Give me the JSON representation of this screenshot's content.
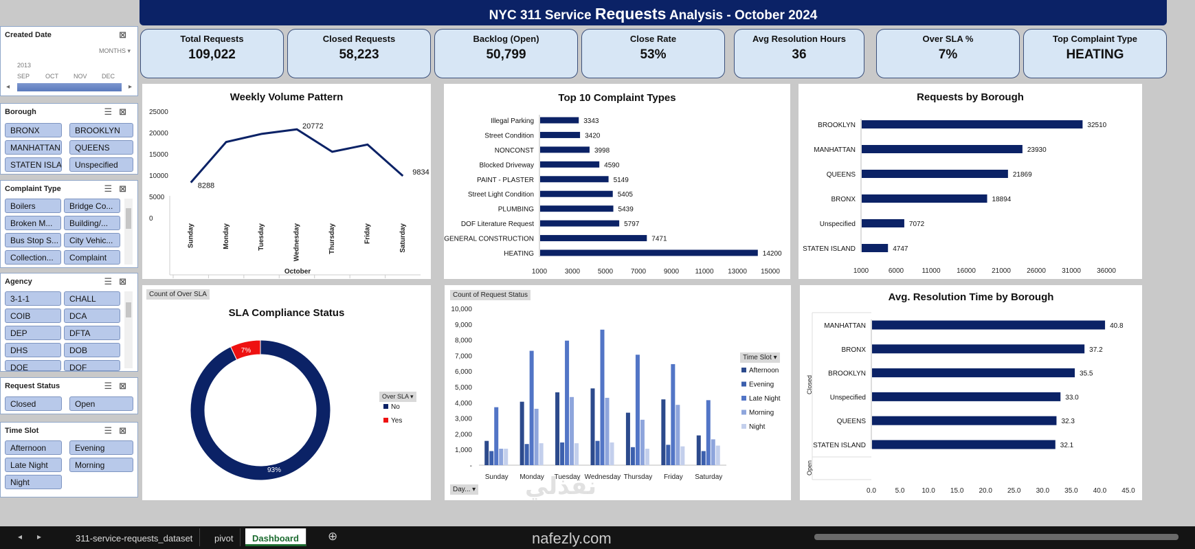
{
  "title": {
    "pre": "NYC 311 Service ",
    "big": "Requests",
    "post": " Analysis - October 2024"
  },
  "kpis": [
    {
      "label": "Total Requests",
      "value": "109,022"
    },
    {
      "label": "Closed Requests",
      "value": "58,223"
    },
    {
      "label": "Backlog (Open)",
      "value": "50,799"
    },
    {
      "label": "Close Rate",
      "value": "53%"
    },
    {
      "label": "Avg Resolution Hours",
      "value": "36"
    },
    {
      "label": "Over SLA %",
      "value": "7%"
    },
    {
      "label": "Top Complaint Type",
      "value": "HEATING"
    }
  ],
  "timeline": {
    "title": "Created  Date",
    "unit": "MONTHS",
    "year": "2013",
    "months": [
      "SEP",
      "OCT",
      "NOV",
      "DEC"
    ]
  },
  "slicers": {
    "borough": {
      "title": "Borough",
      "items": [
        "BRONX",
        "BROOKLYN",
        "MANHATTAN",
        "QUEENS",
        "STATEN ISLA...",
        "Unspecified"
      ]
    },
    "complaint": {
      "title": "Complaint Type",
      "items": [
        "Boilers",
        "Bridge Co...",
        "Broken M...",
        "Building/...",
        "Bus Stop S...",
        "City Vehic...",
        "Collection...",
        "Complaint"
      ]
    },
    "agency": {
      "title": "Agency",
      "items": [
        "3-1-1",
        "CHALL",
        "COIB",
        "DCA",
        "DEP",
        "DFTA",
        "DHS",
        "DOB",
        "DOE",
        "DOF"
      ]
    },
    "status": {
      "title": "Request Status",
      "items": [
        "Closed",
        "Open"
      ]
    },
    "timeslot": {
      "title": "Time Slot",
      "items": [
        "Afternoon",
        "Evening",
        "Late Night",
        "Morning",
        "Night"
      ]
    }
  },
  "chart_data": [
    {
      "type": "line",
      "title": "Weekly Volume Pattern",
      "categories": [
        "Sunday",
        "Monday",
        "Tuesday",
        "Wednesday",
        "Thursday",
        "Friday",
        "Saturday"
      ],
      "values": [
        8288,
        17800,
        19700,
        20772,
        15500,
        17200,
        9834
      ],
      "data_labels": {
        "Sunday": "8288",
        "Wednesday": "20772",
        "Saturday": "9834"
      },
      "xlabel": "October",
      "ylim": [
        0,
        25000
      ],
      "yticks": [
        "25000",
        "20000",
        "15000",
        "10000",
        "5000",
        "0"
      ],
      "color": "#0b2266"
    },
    {
      "type": "bar",
      "orientation": "horizontal",
      "title": "Top 10 Complaint Types",
      "categories": [
        "Illegal Parking",
        "Street Condition",
        "NONCONST",
        "Blocked Driveway",
        "PAINT - PLASTER",
        "Street Light Condition",
        "PLUMBING",
        "DOF Literature Request",
        "GENERAL CONSTRUCTION",
        "HEATING"
      ],
      "values": [
        3343,
        3420,
        3998,
        4590,
        5149,
        5405,
        5439,
        5797,
        7471,
        14200
      ],
      "xlim": [
        1000,
        15000
      ],
      "xticks": [
        "1000",
        "3000",
        "5000",
        "7000",
        "9000",
        "11000",
        "13000",
        "15000"
      ],
      "color": "#0b2266"
    },
    {
      "type": "bar",
      "orientation": "horizontal",
      "title": "Requests by Borough",
      "categories": [
        "BROOKLYN",
        "MANHATTAN",
        "QUEENS",
        "BRONX",
        "Unspecified",
        "STATEN ISLAND"
      ],
      "values": [
        32510,
        23930,
        21869,
        18894,
        7072,
        4747
      ],
      "xlim": [
        1000,
        36000
      ],
      "xticks": [
        "1000",
        "6000",
        "11000",
        "16000",
        "21000",
        "26000",
        "31000",
        "36000"
      ],
      "color": "#0b2266"
    },
    {
      "type": "pie",
      "donut": true,
      "title": "SLA Compliance Status",
      "field_button": "Count of Over SLA",
      "legend_title": "Over SLA",
      "slices": [
        {
          "name": "No",
          "value": 93,
          "label": "93%",
          "color": "#0b2266"
        },
        {
          "name": "Yes",
          "value": 7,
          "label": "7%",
          "color": "#ee1111"
        }
      ]
    },
    {
      "type": "bar",
      "title": "",
      "field_button": "Count of Request Status",
      "axis_button": "Day...",
      "legend_title": "Time Slot",
      "categories": [
        "Sunday",
        "Monday",
        "Tuesday",
        "Wednesday",
        "Thursday",
        "Friday",
        "Saturday"
      ],
      "series": [
        {
          "name": "Afternoon",
          "color": "#2c4a8c",
          "values": [
            1550,
            4050,
            4650,
            4900,
            3350,
            4200,
            1900
          ]
        },
        {
          "name": "Evening",
          "color": "#3b5fad",
          "values": [
            900,
            1350,
            1450,
            1550,
            1150,
            1300,
            900
          ]
        },
        {
          "name": "Late Night",
          "color": "#5275c6",
          "values": [
            3700,
            7300,
            7950,
            8650,
            7050,
            6450,
            4150
          ]
        },
        {
          "name": "Morning",
          "color": "#8ea5dc",
          "values": [
            1050,
            3600,
            4350,
            4300,
            2900,
            3850,
            1650
          ]
        },
        {
          "name": "Night",
          "color": "#c3cfec",
          "values": [
            1050,
            1400,
            1400,
            1450,
            1050,
            1200,
            1250
          ]
        }
      ],
      "ylim": [
        0,
        10000
      ],
      "yticks": [
        "10,000",
        "9,000",
        "8,000",
        "7,000",
        "6,000",
        "5,000",
        "4,000",
        "3,000",
        "2,000",
        "1,000",
        "-"
      ]
    },
    {
      "type": "bar",
      "orientation": "horizontal",
      "title": "Avg. Resolution Time by Borough",
      "categories": [
        "MANHATTAN",
        "BRONX",
        "BROOKLYN",
        "Unspecified",
        "QUEENS",
        "STATEN ISLAND"
      ],
      "values": [
        40.8,
        37.2,
        35.5,
        33.0,
        32.3,
        32.1
      ],
      "value_labels": [
        "40.8",
        "37.2",
        "35.5",
        "33.0",
        "32.3",
        "32.1"
      ],
      "group_labels": [
        "Closed",
        "Open"
      ],
      "xlim": [
        0,
        45
      ],
      "xticks": [
        "0.0",
        "5.0",
        "10.0",
        "15.0",
        "20.0",
        "25.0",
        "30.0",
        "35.0",
        "40.0",
        "45.0"
      ],
      "color": "#0b2266"
    }
  ],
  "tabs": [
    "311-service-requests_dataset",
    "pivot",
    "Dashboard"
  ],
  "icons": {
    "nav_prev": "◂",
    "nav_next": "▸",
    "add_sheet": "⊕"
  },
  "watermark": {
    "logo": "نفذلي",
    "text": "nafezly.com"
  }
}
